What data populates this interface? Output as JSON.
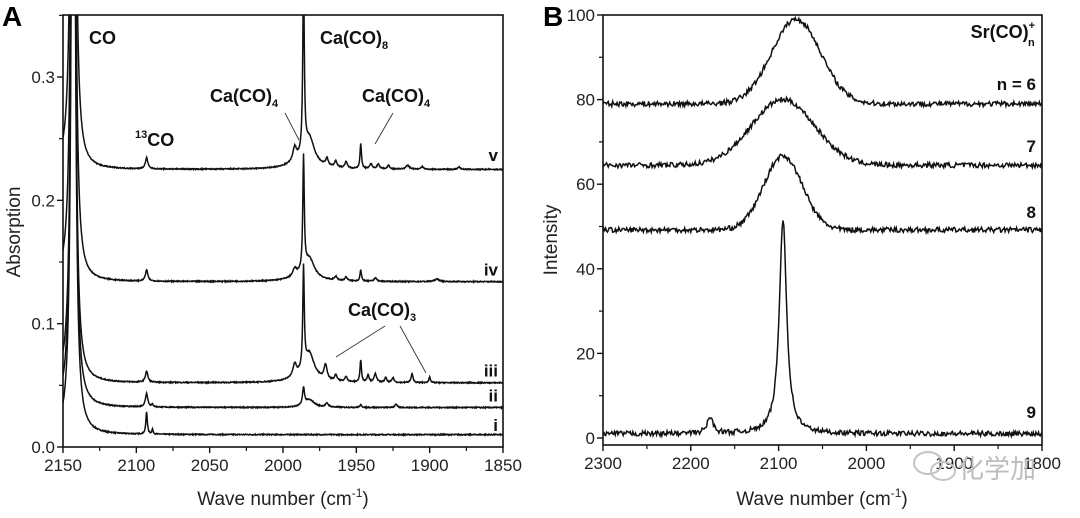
{
  "chart_data": [
    {
      "panel": "A",
      "type": "line",
      "xlabel": "Wave number (cm-1)",
      "xlabel_main": "Wave number (cm",
      "xlabel_sup": "-1",
      "xlabel_close": ")",
      "ylabel": "Absorption",
      "xlim": [
        2150,
        1850
      ],
      "ylim": [
        0.0,
        0.35
      ],
      "xticks": [
        2150,
        2100,
        2050,
        2000,
        1950,
        1900,
        1850
      ],
      "xtick_labels": [
        "2150",
        "2100",
        "2050",
        "2000",
        "1950",
        "1900",
        "1850"
      ],
      "yticks": [
        0.0,
        0.1,
        0.2,
        0.3
      ],
      "ytick_labels": [
        "0.0",
        "0.1",
        "0.2",
        "0.3"
      ],
      "grid": false,
      "series": [
        {
          "name": "i",
          "baseline": 0.01,
          "peaks": [
            [
              2143,
              0.9,
              1.2
            ],
            [
              2093,
              0.018,
              0.6
            ],
            [
              2089,
              0.004,
              0.5
            ]
          ]
        },
        {
          "name": "ii",
          "baseline": 0.032,
          "peaks": [
            [
              2143,
              0.9,
              1.2
            ],
            [
              2093,
              0.011,
              1.0
            ],
            [
              2089,
              0.002,
              0.6
            ],
            [
              1986,
              0.014,
              0.8
            ],
            [
              1982,
              0.006,
              4
            ],
            [
              1970,
              0.003,
              1.2
            ],
            [
              1947,
              0.002,
              0.8
            ],
            [
              1923,
              0.003,
              0.8
            ]
          ]
        },
        {
          "name": "iii",
          "baseline": 0.052,
          "peaks": [
            [
              2143,
              0.9,
              1.2
            ],
            [
              2093,
              0.009,
              1.0
            ],
            [
              1992,
              0.01,
              1.5
            ],
            [
              1986,
              0.082,
              0.6
            ],
            [
              1982,
              0.02,
              4
            ],
            [
              1971,
              0.012,
              1.2
            ],
            [
              1964,
              0.005,
              1
            ],
            [
              1957,
              0.004,
              1
            ],
            [
              1947,
              0.018,
              0.6
            ],
            [
              1942,
              0.006,
              0.8
            ],
            [
              1937,
              0.007,
              1
            ],
            [
              1930,
              0.004,
              0.8
            ],
            [
              1925,
              0.004,
              0.8
            ],
            [
              1912,
              0.007,
              0.8
            ],
            [
              1900,
              0.005,
              0.6
            ]
          ]
        },
        {
          "name": "iv",
          "baseline": 0.134,
          "peaks": [
            [
              2143,
              0.9,
              1.2
            ],
            [
              2093,
              0.009,
              1.0
            ],
            [
              1992,
              0.006,
              1.5
            ],
            [
              1986,
              0.092,
              0.6
            ],
            [
              1982,
              0.015,
              4
            ],
            [
              1964,
              0.003,
              1
            ],
            [
              1957,
              0.003,
              1
            ],
            [
              1947,
              0.009,
              0.6
            ],
            [
              1937,
              0.003,
              1
            ],
            [
              1895,
              0.002,
              2
            ]
          ]
        },
        {
          "name": "v",
          "baseline": 0.225,
          "peaks": [
            [
              2143,
              0.9,
              1.2
            ],
            [
              2093,
              0.009,
              1.0
            ],
            [
              1992,
              0.011,
              1.5
            ],
            [
              1986,
              0.145,
              0.6
            ],
            [
              1982,
              0.02,
              4
            ],
            [
              1970,
              0.006,
              1
            ],
            [
              1964,
              0.005,
              1
            ],
            [
              1957,
              0.005,
              1
            ],
            [
              1947,
              0.02,
              0.6
            ],
            [
              1940,
              0.004,
              1
            ],
            [
              1935,
              0.004,
              1
            ],
            [
              1928,
              0.003,
              1
            ],
            [
              1915,
              0.003,
              1.5
            ],
            [
              1905,
              0.002,
              1
            ],
            [
              1880,
              0.002,
              1
            ]
          ]
        }
      ],
      "annotations": [
        {
          "text": "CO",
          "sub": "",
          "sup": "",
          "x": 2140,
          "y": 0.3
        },
        {
          "text": "CO",
          "sup": "13",
          "sub": "",
          "x": 2093,
          "y": 0.25
        },
        {
          "text": "Ca(CO)",
          "sub": "4",
          "sup": "",
          "x": 1992,
          "y": 0.28,
          "pointer": [
            1990,
            0.236
          ]
        },
        {
          "text": "Ca(CO)",
          "sub": "8",
          "sup": "",
          "x": 1986,
          "y": 0.33
        },
        {
          "text": "Ca(CO)",
          "sub": "4",
          "sup": "",
          "x": 1947,
          "y": 0.28,
          "pointer": [
            1947,
            0.245
          ]
        },
        {
          "text": "Ca(CO)",
          "sub": "3",
          "sup": "",
          "x": 1945,
          "y": 0.105,
          "pointers": [
            [
              1971,
              0.066
            ],
            [
              1912,
              0.059
            ]
          ]
        }
      ],
      "series_labels": [
        "i",
        "ii",
        "iii",
        "iv",
        "v"
      ]
    },
    {
      "panel": "B",
      "type": "line",
      "xlabel": "Wave number (cm-1)",
      "xlabel_main": "Wave number (cm",
      "xlabel_sup": "-1",
      "xlabel_close": ")",
      "ylabel": "Intensity",
      "xlim": [
        2300,
        1800
      ],
      "ylim": [
        -2,
        100
      ],
      "xticks": [
        2300,
        2200,
        2100,
        2000,
        1900,
        1800
      ],
      "xtick_labels": [
        "2300",
        "2200",
        "2100",
        "2000",
        "1900",
        "1800"
      ],
      "yticks": [
        0,
        20,
        40,
        60,
        80,
        100
      ],
      "ytick_labels": [
        "0",
        "20",
        "40",
        "60",
        "80",
        "100"
      ],
      "grid": false,
      "legend_title": {
        "text": "Sr(CO)",
        "sup": "+",
        "sub": "n"
      },
      "series": [
        {
          "name": "n = 6",
          "label": "n = 6",
          "baseline": 79,
          "peak_center": 2080,
          "peak_height": 20,
          "peak_width": 28
        },
        {
          "name": "7",
          "label": "7",
          "baseline": 64.5,
          "peak_center": 2095,
          "peak_height": 15.5,
          "peak_width": 36
        },
        {
          "name": "8",
          "label": "8",
          "baseline": 49.2,
          "peak_center": 2095,
          "peak_height": 17.5,
          "peak_width": 22
        },
        {
          "name": "9",
          "label": "9",
          "baseline": 1.0,
          "peak_center": 2095,
          "peak_height": 51,
          "peak_width": 5,
          "extra_peak": [
            2178,
            3.8,
            4
          ]
        }
      ]
    }
  ],
  "figure": {
    "panel_letters": [
      "A",
      "B"
    ],
    "watermark": "化学加"
  }
}
